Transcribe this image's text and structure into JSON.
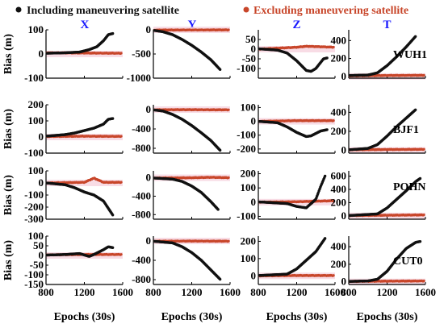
{
  "colors": {
    "including": "#111111",
    "excluding": "#c8462a",
    "column_title": "#1a1aff"
  },
  "legend": {
    "including": "Including maneuvering satellite",
    "excluding": "Excluding maneuvering satellite"
  },
  "chart_data": {
    "type": "scatter",
    "xlabel": "Epochs (30s)",
    "ylabel": "Bias (m)",
    "x_range": [
      800,
      1600
    ],
    "x_ticks": [
      "800",
      "1200",
      "1600"
    ],
    "columns": [
      "X",
      "Y",
      "Z",
      "T"
    ],
    "stations": [
      "WUH1",
      "BJF1",
      "POHN",
      "CUT0"
    ],
    "panels": [
      [
        {
          "ylim": [
            -100,
            100
          ],
          "yticks": [
            100,
            0,
            -100
          ],
          "inc": [
            [
              800,
              3
            ],
            [
              1000,
              5
            ],
            [
              1150,
              8
            ],
            [
              1250,
              18
            ],
            [
              1330,
              30
            ],
            [
              1400,
              55
            ],
            [
              1450,
              80
            ],
            [
              1500,
              85
            ]
          ],
          "exc": [
            [
              800,
              5
            ],
            [
              1200,
              4
            ],
            [
              1600,
              3
            ]
          ],
          "inc_end": 1500
        },
        {
          "ylim": [
            -1000,
            0
          ],
          "yticks": [
            0,
            -500,
            -1000
          ],
          "inc": [
            [
              800,
              -10
            ],
            [
              900,
              -40
            ],
            [
              1000,
              -100
            ],
            [
              1100,
              -200
            ],
            [
              1200,
              -320
            ],
            [
              1300,
              -460
            ],
            [
              1400,
              -620
            ],
            [
              1500,
              -830
            ]
          ],
          "exc": [
            [
              800,
              -5
            ],
            [
              1200,
              -3
            ],
            [
              1600,
              -2
            ]
          ],
          "inc_end": 1500
        },
        {
          "ylim": [
            -150,
            100
          ],
          "yticks": [
            50,
            0,
            -50,
            -100
          ],
          "inc": [
            [
              800,
              2
            ],
            [
              1000,
              -5
            ],
            [
              1100,
              -20
            ],
            [
              1200,
              -60
            ],
            [
              1300,
              -110
            ],
            [
              1350,
              -115
            ],
            [
              1400,
              -100
            ],
            [
              1480,
              -50
            ],
            [
              1520,
              -45
            ]
          ],
          "exc": [
            [
              800,
              0
            ],
            [
              1200,
              10
            ],
            [
              1300,
              15
            ],
            [
              1600,
              10
            ]
          ],
          "inc_end": 1520
        },
        {
          "ylim": [
            -20,
            520
          ],
          "yticks": [
            400,
            200,
            0
          ],
          "inc": [
            [
              800,
              10
            ],
            [
              1000,
              15
            ],
            [
              1100,
              40
            ],
            [
              1200,
              120
            ],
            [
              1300,
              220
            ],
            [
              1400,
              330
            ],
            [
              1500,
              450
            ]
          ],
          "exc": [
            [
              800,
              5
            ],
            [
              1200,
              10
            ],
            [
              1600,
              12
            ]
          ],
          "inc_end": 1500
        }
      ],
      [
        {
          "ylim": [
            -100,
            200
          ],
          "yticks": [
            200,
            100,
            0,
            -100
          ],
          "inc": [
            [
              800,
              5
            ],
            [
              1000,
              15
            ],
            [
              1100,
              25
            ],
            [
              1200,
              40
            ],
            [
              1300,
              55
            ],
            [
              1400,
              80
            ],
            [
              1450,
              110
            ],
            [
              1500,
              115
            ]
          ],
          "exc": [
            [
              800,
              3
            ],
            [
              1200,
              5
            ],
            [
              1500,
              4
            ]
          ],
          "inc_end": 1500
        },
        {
          "ylim": [
            -900,
            100
          ],
          "yticks": [
            0,
            -400,
            -800
          ],
          "inc": [
            [
              800,
              -5
            ],
            [
              900,
              -30
            ],
            [
              1000,
              -100
            ],
            [
              1100,
              -200
            ],
            [
              1200,
              -330
            ],
            [
              1300,
              -480
            ],
            [
              1400,
              -640
            ],
            [
              1500,
              -850
            ]
          ],
          "exc": [
            [
              800,
              -3
            ],
            [
              1200,
              -2
            ],
            [
              1600,
              -5
            ]
          ],
          "inc_end": 1500
        },
        {
          "ylim": [
            -230,
            120
          ],
          "yticks": [
            100,
            0,
            -100,
            -200
          ],
          "inc": [
            [
              800,
              0
            ],
            [
              1000,
              -10
            ],
            [
              1100,
              -40
            ],
            [
              1200,
              -80
            ],
            [
              1300,
              -110
            ],
            [
              1350,
              -105
            ],
            [
              1450,
              -70
            ],
            [
              1520,
              -60
            ]
          ],
          "exc": [
            [
              800,
              0
            ],
            [
              1200,
              5
            ],
            [
              1600,
              5
            ]
          ],
          "inc_end": 1520
        },
        {
          "ylim": [
            -30,
            480
          ],
          "yticks": [
            400,
            200,
            0
          ],
          "inc": [
            [
              800,
              5
            ],
            [
              1000,
              20
            ],
            [
              1100,
              60
            ],
            [
              1200,
              150
            ],
            [
              1300,
              250
            ],
            [
              1400,
              340
            ],
            [
              1500,
              430
            ]
          ],
          "exc": [
            [
              800,
              5
            ],
            [
              1200,
              8
            ],
            [
              1600,
              10
            ]
          ],
          "inc_end": 1500
        }
      ],
      [
        {
          "ylim": [
            -300,
            100
          ],
          "yticks": [
            100,
            0,
            -100,
            -200,
            -300
          ],
          "inc": [
            [
              800,
              0
            ],
            [
              1000,
              -15
            ],
            [
              1100,
              -40
            ],
            [
              1200,
              -75
            ],
            [
              1300,
              -100
            ],
            [
              1400,
              -150
            ],
            [
              1450,
              -210
            ],
            [
              1500,
              -270
            ]
          ],
          "exc": [
            [
              800,
              0
            ],
            [
              1200,
              5
            ],
            [
              1300,
              40
            ],
            [
              1400,
              5
            ],
            [
              1600,
              5
            ]
          ],
          "inc_end": 1500
        },
        {
          "ylim": [
            -900,
            150
          ],
          "yticks": [
            0,
            -400,
            -800
          ],
          "inc": [
            [
              800,
              -5
            ],
            [
              1000,
              -30
            ],
            [
              1100,
              -80
            ],
            [
              1200,
              -180
            ],
            [
              1300,
              -320
            ],
            [
              1400,
              -520
            ],
            [
              1480,
              -700
            ]
          ],
          "exc": [
            [
              800,
              -5
            ],
            [
              1200,
              0
            ],
            [
              1400,
              10
            ],
            [
              1600,
              0
            ]
          ],
          "inc_end": 1480
        },
        {
          "ylim": [
            -120,
            220
          ],
          "yticks": [
            200,
            100,
            0,
            -100
          ],
          "inc": [
            [
              800,
              2
            ],
            [
              1100,
              -10
            ],
            [
              1200,
              -30
            ],
            [
              1300,
              -40
            ],
            [
              1400,
              20
            ],
            [
              1450,
              110
            ],
            [
              1500,
              190
            ]
          ],
          "exc": [
            [
              800,
              0
            ],
            [
              1200,
              3
            ],
            [
              1600,
              10
            ]
          ],
          "inc_end": 1500
        },
        {
          "ylim": [
            -50,
            680
          ],
          "yticks": [
            600,
            400,
            200,
            0
          ],
          "inc": [
            [
              800,
              5
            ],
            [
              1100,
              30
            ],
            [
              1200,
              120
            ],
            [
              1300,
              250
            ],
            [
              1400,
              380
            ],
            [
              1500,
              520
            ],
            [
              1550,
              570
            ]
          ],
          "exc": [
            [
              800,
              5
            ],
            [
              1200,
              10
            ],
            [
              1600,
              15
            ]
          ],
          "inc_end": 1550
        }
      ],
      [
        {
          "ylim": [
            -150,
            100
          ],
          "yticks": [
            100,
            50,
            0,
            -50,
            -100,
            -150
          ],
          "inc": [
            [
              800,
              2
            ],
            [
              1000,
              5
            ],
            [
              1150,
              10
            ],
            [
              1250,
              -5
            ],
            [
              1300,
              5
            ],
            [
              1400,
              30
            ],
            [
              1450,
              45
            ],
            [
              1500,
              40
            ]
          ],
          "exc": [
            [
              800,
              3
            ],
            [
              1200,
              5
            ],
            [
              1600,
              5
            ]
          ],
          "inc_end": 1500
        },
        {
          "ylim": [
            -900,
            100
          ],
          "yticks": [
            0,
            -400,
            -800
          ],
          "inc": [
            [
              800,
              -5
            ],
            [
              1000,
              -40
            ],
            [
              1100,
              -120
            ],
            [
              1200,
              -240
            ],
            [
              1300,
              -400
            ],
            [
              1400,
              -600
            ],
            [
              1500,
              -800
            ]
          ],
          "exc": [
            [
              800,
              -5
            ],
            [
              1200,
              -2
            ],
            [
              1600,
              -5
            ]
          ],
          "inc_end": 1500
        },
        {
          "ylim": [
            -50,
            230
          ],
          "yticks": [
            200,
            100,
            0
          ],
          "inc": [
            [
              800,
              2
            ],
            [
              1100,
              10
            ],
            [
              1200,
              40
            ],
            [
              1300,
              90
            ],
            [
              1400,
              140
            ],
            [
              1450,
              180
            ],
            [
              1500,
              220
            ]
          ],
          "exc": [
            [
              800,
              0
            ],
            [
              1200,
              2
            ],
            [
              1600,
              2
            ]
          ],
          "inc_end": 1500
        },
        {
          "ylim": [
            -30,
            520
          ],
          "yticks": [
            400,
            200,
            0
          ],
          "inc": [
            [
              800,
              5
            ],
            [
              1000,
              10
            ],
            [
              1100,
              30
            ],
            [
              1200,
              120
            ],
            [
              1300,
              260
            ],
            [
              1400,
              380
            ],
            [
              1500,
              450
            ],
            [
              1550,
              460
            ]
          ],
          "exc": [
            [
              800,
              5
            ],
            [
              1200,
              8
            ],
            [
              1600,
              10
            ]
          ],
          "inc_end": 1550
        }
      ]
    ]
  }
}
